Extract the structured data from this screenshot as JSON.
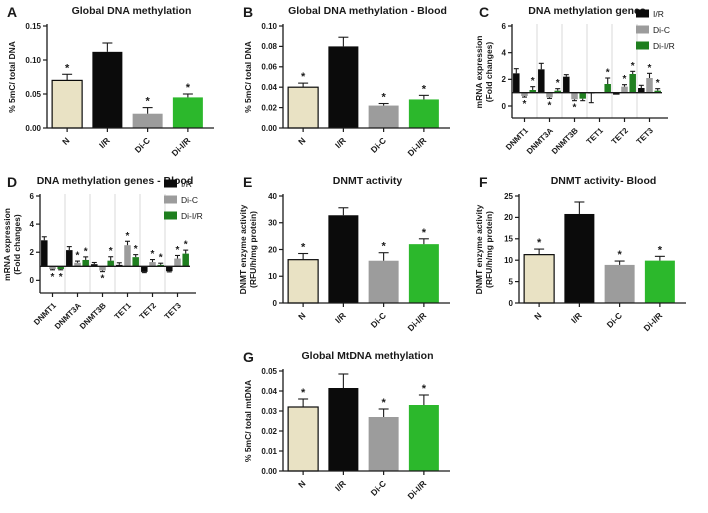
{
  "figure": {
    "background": "#FFFFFF",
    "legend_position": "top-right"
  },
  "colors": {
    "beige": "#E9E2C4",
    "black": "#0B0B0B",
    "gray": "#9C9C9C",
    "green": "#2CB82C",
    "green_dark": "#1F7F1F",
    "axis": "#1A1A1A",
    "separator": "#D8D8D8",
    "star": "#1A1A1A",
    "error": "#1A1A1A",
    "text": "#1A1A1A"
  },
  "chart_data": [
    {
      "id": "A",
      "type": "bar",
      "title": "Global DNA methylation",
      "ylabel_lines": [
        "% 5mC/ total DNA"
      ],
      "categories": [
        "N",
        "I/R",
        "Di-C",
        "Di-I/R"
      ],
      "values": [
        0.07,
        0.112,
        0.021,
        0.045
      ],
      "errors": [
        0.009,
        0.013,
        0.009,
        0.005
      ],
      "stars": [
        1,
        0,
        1,
        1
      ],
      "bar_colors": [
        "beige",
        "black",
        "gray",
        "green"
      ],
      "ylim": [
        0,
        0.15
      ],
      "yticks": [
        0,
        0.05,
        0.1,
        0.15
      ],
      "decimals": 2,
      "grid": false
    },
    {
      "id": "B",
      "type": "bar",
      "title": "Global DNA methylation - Blood",
      "ylabel_lines": [
        "% 5mC/ total DNA"
      ],
      "categories": [
        "N",
        "I/R",
        "Di-C",
        "Di-I/R"
      ],
      "values": [
        0.04,
        0.08,
        0.022,
        0.028
      ],
      "errors": [
        0.004,
        0.009,
        0.002,
        0.004
      ],
      "stars": [
        1,
        0,
        1,
        1
      ],
      "bar_colors": [
        "beige",
        "black",
        "gray",
        "green"
      ],
      "ylim": [
        0,
        0.1
      ],
      "yticks": [
        0,
        0.02,
        0.04,
        0.06,
        0.08,
        0.1
      ],
      "decimals": 2,
      "grid": false
    },
    {
      "id": "C",
      "type": "grouped-bar",
      "title": "DNA methylation genes",
      "ylabel_lines": [
        "mRNA expression",
        "(Fold changes)"
      ],
      "categories": [
        "DNMT1",
        "DNMT3A",
        "DNMT3B",
        "TET1",
        "TET2",
        "TET3"
      ],
      "baseline": 1,
      "series": [
        {
          "name": "I/R",
          "color": "black",
          "values": [
            2.45,
            2.75,
            2.2,
            0.95,
            0.85,
            1.35
          ],
          "errors": [
            0.35,
            0.45,
            0.15,
            0.7,
            0.0,
            0.2
          ],
          "stars": [
            0,
            0,
            0,
            0,
            0,
            0
          ]
        },
        {
          "name": "Di-C",
          "color": "gray",
          "values": [
            0.75,
            0.65,
            0.5,
            1.0,
            1.45,
            2.1
          ],
          "errors": [
            0.08,
            0.08,
            0.1,
            0.0,
            0.15,
            0.35
          ],
          "stars": [
            -1,
            -1,
            -1,
            0,
            1,
            1
          ]
        },
        {
          "name": "Di-I/R",
          "color": "green_dark",
          "values": [
            1.2,
            1.15,
            0.55,
            1.65,
            2.4,
            1.15
          ],
          "errors": [
            0.25,
            0.15,
            0.15,
            0.45,
            0.2,
            0.15
          ],
          "stars": [
            1,
            1,
            0,
            1,
            1,
            1
          ]
        }
      ],
      "legend": [
        "I/R",
        "Di-C",
        "Di-I/R"
      ],
      "legend_colors": [
        "black",
        "gray",
        "green_dark"
      ],
      "ylim": [
        -0.9,
        6
      ],
      "yticks": [
        0,
        2,
        4,
        6
      ],
      "decimals": 0,
      "grid": true
    },
    {
      "id": "D",
      "type": "grouped-bar",
      "title": "DNA methylation genes - Blood",
      "ylabel_lines": [
        "mRNA expression",
        "(Fold changes)"
      ],
      "categories": [
        "DNMT1",
        "DNMT3A",
        "DNMT3B",
        "TET1",
        "TET2",
        "TET3"
      ],
      "baseline": 1,
      "series": [
        {
          "name": "I/R",
          "color": "black",
          "values": [
            2.85,
            2.15,
            1.15,
            1.1,
            0.6,
            0.65
          ],
          "errors": [
            0.25,
            0.25,
            0.12,
            0.15,
            0.05,
            0.05
          ],
          "stars": [
            0,
            0,
            0,
            0,
            0,
            0
          ]
        },
        {
          "name": "Di-C",
          "color": "gray",
          "values": [
            0.8,
            1.25,
            0.7,
            2.5,
            1.3,
            1.55
          ],
          "errors": [
            0.05,
            0.12,
            0.08,
            0.28,
            0.18,
            0.22
          ],
          "stars": [
            -1,
            1,
            -1,
            1,
            1,
            1
          ]
        },
        {
          "name": "Di-I/R",
          "color": "green_dark",
          "values": [
            0.8,
            1.45,
            1.4,
            1.65,
            1.1,
            1.9
          ],
          "errors": [
            0.05,
            0.22,
            0.28,
            0.18,
            0.12,
            0.25
          ],
          "stars": [
            -1,
            1,
            1,
            1,
            1,
            1
          ]
        }
      ],
      "legend": [
        "I/R",
        "Di-C",
        "Di-I/R"
      ],
      "legend_colors": [
        "black",
        "gray",
        "green_dark"
      ],
      "ylim": [
        -0.9,
        6
      ],
      "yticks": [
        0,
        2,
        4,
        6
      ],
      "decimals": 0,
      "grid": true
    },
    {
      "id": "E",
      "type": "bar",
      "title": "DNMT activity",
      "ylabel_lines": [
        "DNMT enzyme activity",
        "(RFU/h/mg protein)"
      ],
      "categories": [
        "N",
        "I/R",
        "Di-C",
        "Di-I/R"
      ],
      "values": [
        16.2,
        32.8,
        15.8,
        22.0
      ],
      "errors": [
        2.3,
        2.8,
        3.0,
        2.0
      ],
      "stars": [
        1,
        0,
        1,
        1
      ],
      "bar_colors": [
        "beige",
        "black",
        "gray",
        "green"
      ],
      "ylim": [
        0,
        40
      ],
      "yticks": [
        0,
        10,
        20,
        30,
        40
      ],
      "decimals": 0,
      "grid": false
    },
    {
      "id": "F",
      "type": "bar",
      "title": "DNMT activity- Blood",
      "ylabel_lines": [
        "DNMT enzyme activity",
        "(RFU/h/mg protein)"
      ],
      "categories": [
        "N",
        "I/R",
        "Di-C",
        "Di-I/R"
      ],
      "values": [
        11.3,
        20.8,
        8.9,
        9.9
      ],
      "errors": [
        1.3,
        2.8,
        0.9,
        1.0
      ],
      "stars": [
        1,
        0,
        1,
        1
      ],
      "bar_colors": [
        "beige",
        "black",
        "gray",
        "green"
      ],
      "ylim": [
        0,
        25
      ],
      "yticks": [
        0,
        5,
        10,
        15,
        20,
        25
      ],
      "decimals": 0,
      "grid": false
    },
    {
      "id": "G",
      "type": "bar",
      "title": "Global MtDNA methylation",
      "ylabel_lines": [
        "% 5mC/ total mtDNA"
      ],
      "categories": [
        "N",
        "I/R",
        "Di-C",
        "Di-I/R"
      ],
      "values": [
        0.032,
        0.0415,
        0.027,
        0.033
      ],
      "errors": [
        0.004,
        0.007,
        0.004,
        0.005
      ],
      "stars": [
        1,
        0,
        1,
        1
      ],
      "bar_colors": [
        "beige",
        "black",
        "gray",
        "green"
      ],
      "ylim": [
        0,
        0.05
      ],
      "yticks": [
        0,
        0.01,
        0.02,
        0.03,
        0.04,
        0.05
      ],
      "decimals": 2,
      "grid": false
    }
  ]
}
